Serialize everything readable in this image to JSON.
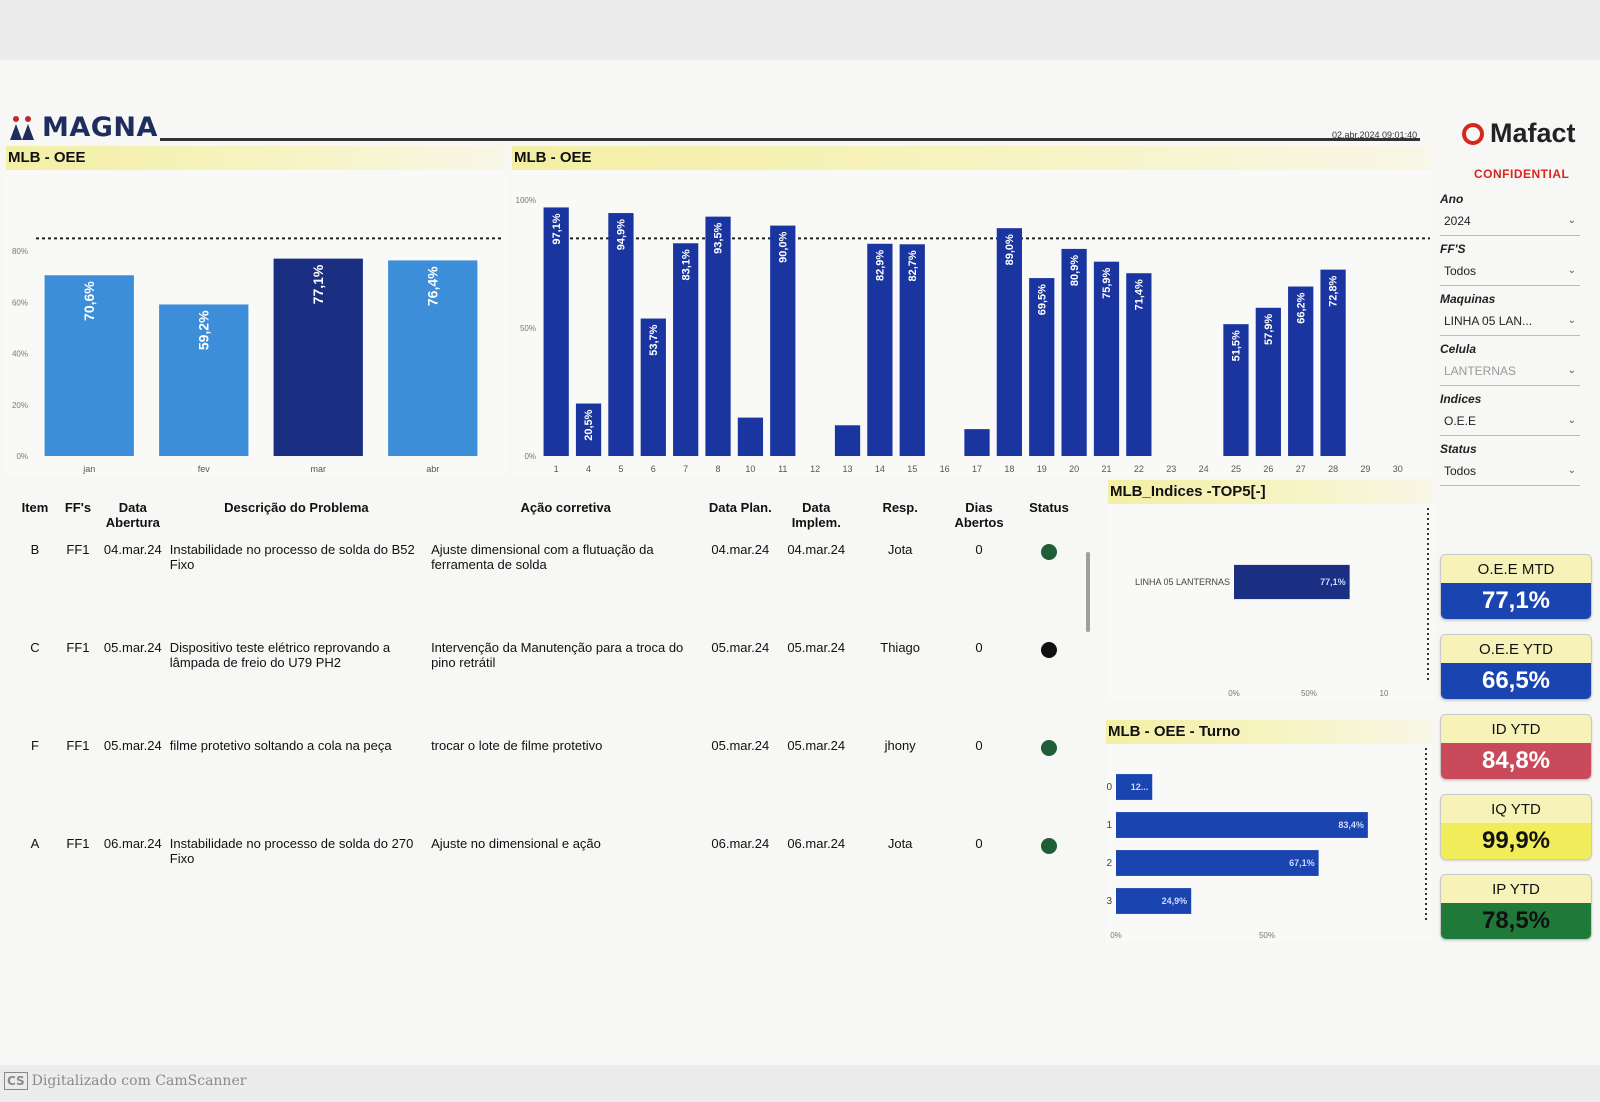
{
  "header": {
    "logo": "MAGNA",
    "timestamp": "02.abr.2024 09:01:40",
    "brand": "Mafact",
    "confidential": "CONFIDENTIAL"
  },
  "monthly_chart": {
    "title": "MLB - OEE",
    "chart_data": {
      "type": "bar",
      "categories": [
        "jan",
        "fev",
        "mar",
        "abr"
      ],
      "values": [
        70.6,
        59.2,
        77.1,
        76.4
      ],
      "value_labels": [
        "70,6%",
        "59,2%",
        "77,1%",
        "76,4%"
      ],
      "yticks": [
        "0%",
        "20%",
        "40%",
        "60%",
        "80%"
      ],
      "ylim": [
        0,
        100
      ],
      "target": 85,
      "colors": [
        "#3d8ed8",
        "#3d8ed8",
        "#1a2f82",
        "#3d8ed8"
      ]
    }
  },
  "daily_chart": {
    "title": "MLB - OEE",
    "chart_data": {
      "type": "bar",
      "categories": [
        "1",
        "4",
        "5",
        "6",
        "7",
        "8",
        "10",
        "11",
        "12",
        "13",
        "14",
        "15",
        "16",
        "17",
        "18",
        "19",
        "20",
        "21",
        "22",
        "23",
        "24",
        "25",
        "26",
        "27",
        "28",
        "29",
        "30"
      ],
      "values": [
        97.1,
        20.5,
        94.9,
        53.7,
        83.1,
        93.5,
        15,
        90.0,
        null,
        12,
        82.9,
        82.7,
        null,
        10.5,
        89.0,
        69.5,
        80.9,
        75.9,
        71.4,
        null,
        null,
        51.5,
        57.9,
        66.2,
        72.8,
        null,
        null
      ],
      "value_labels": [
        "97,1%",
        "20,5%",
        "94,9%",
        "53,7%",
        "83,1%",
        "93,5%",
        "",
        "90,0%",
        "",
        "",
        "82,9%",
        "82,7%",
        "",
        "",
        "89,0%",
        "69,5%",
        "80,9%",
        "75,9%",
        "71,4%",
        "",
        "",
        "51,5%",
        "57,9%",
        "66,2%",
        "72,8%",
        "",
        ""
      ],
      "yticks": [
        "0%",
        "50%",
        "100%"
      ],
      "ylim": [
        0,
        100
      ],
      "target": 85,
      "color": "#1a35a0"
    }
  },
  "filters": {
    "ano_label": "Ano",
    "ano_value": "2024",
    "ffs_label": "FF'S",
    "ffs_value": "Todos",
    "maquinas_label": "Maquinas",
    "maquinas_value": "LINHA 05 LAN...",
    "celula_label": "Celula",
    "celula_value": "LANTERNAS",
    "indices_label": "Indices",
    "indices_value": "O.E.E",
    "status_label": "Status",
    "status_value": "Todos"
  },
  "kpis": [
    {
      "label": "O.E.E MTD",
      "value": "77,1%",
      "bg": "#1a45b0",
      "color": "#ffffff"
    },
    {
      "label": "O.E.E YTD",
      "value": "66,5%",
      "bg": "#1a45b0",
      "color": "#ffffff"
    },
    {
      "label": "ID YTD",
      "value": "84,8%",
      "bg": "#c94a5a",
      "color": "#ffffff"
    },
    {
      "label": "IQ YTD",
      "value": "99,9%",
      "bg": "#f0ec5a",
      "color": "#111111"
    },
    {
      "label": "IP YTD",
      "value": "78,5%",
      "bg": "#1f7a3a",
      "color": "#111111"
    }
  ],
  "table": {
    "headers": {
      "item": "Item",
      "ffs": "FF's",
      "data_abertura": "Data Abertura",
      "descricao": "Descrição do Problema",
      "acao": "Ação corretiva",
      "data_plan": "Data Plan.",
      "data_implem": "Data Implem.",
      "resp": "Resp.",
      "dias_abertos": "Dias Abertos",
      "status": "Status"
    },
    "rows": [
      {
        "item": "B",
        "ff": "FF1",
        "abertura": "04.mar.24",
        "descricao": "Instabilidade no processo de solda do B52 Fixo",
        "acao": "Ajuste dimensional com a flutuação da ferramenta de solda",
        "plan": "04.mar.24",
        "implem": "04.mar.24",
        "resp": "Jota",
        "dias": "0",
        "status": "green"
      },
      {
        "item": "C",
        "ff": "FF1",
        "abertura": "05.mar.24",
        "descricao": "Dispositivo teste elétrico reprovando a lâmpada de freio do U79 PH2",
        "acao": "Intervenção da Manutenção para a troca do pino retrátil",
        "plan": "05.mar.24",
        "implem": "05.mar.24",
        "resp": "Thiago",
        "dias": "0",
        "status": "black"
      },
      {
        "item": "F",
        "ff": "FF1",
        "abertura": "05.mar.24",
        "descricao": "filme protetivo soltando a cola na peça",
        "acao": "trocar o lote de filme protetivo",
        "plan": "05.mar.24",
        "implem": "05.mar.24",
        "resp": "jhony",
        "dias": "0",
        "status": "green"
      },
      {
        "item": "A",
        "ff": "FF1",
        "abertura": "06.mar.24",
        "descricao": "Instabilidade no processo de solda do 270 Fixo",
        "acao": "Ajuste no dimensional e ação",
        "plan": "06.mar.24",
        "implem": "06.mar.24",
        "resp": "Jota",
        "dias": "0",
        "status": "green"
      }
    ]
  },
  "top5_chart": {
    "title": "MLB_Indices -TOP5[-]",
    "chart_data": {
      "type": "bar",
      "orientation": "horizontal",
      "categories": [
        "LINHA 05 LANTERNAS"
      ],
      "values": [
        77.1
      ],
      "value_labels": [
        "77,1%"
      ],
      "xticks": [
        "0%",
        "50%",
        "10"
      ],
      "xlim": [
        0,
        100
      ],
      "color": "#1a2f82"
    }
  },
  "turno_chart": {
    "title": "MLB - OEE - Turno",
    "chart_data": {
      "type": "bar",
      "orientation": "horizontal",
      "categories": [
        "0",
        "1",
        "2",
        "3"
      ],
      "values": [
        12,
        83.4,
        67.1,
        24.9
      ],
      "value_labels": [
        "12...",
        "83,4%",
        "67,1%",
        "24,9%"
      ],
      "xticks": [
        "0%",
        "50%"
      ],
      "xlim": [
        0,
        100
      ],
      "color": "#1a45b0"
    }
  },
  "footer": {
    "cs_mark": "CS",
    "scanner": "Digitalizado com CamScanner"
  }
}
